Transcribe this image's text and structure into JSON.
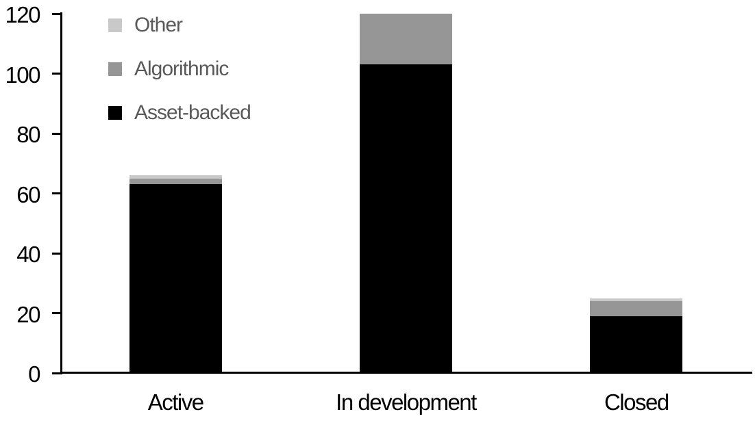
{
  "chart_data": {
    "type": "bar",
    "stacked": true,
    "title": "",
    "xlabel": "",
    "ylabel": "",
    "categories": [
      "Active",
      "In development",
      "Closed"
    ],
    "series": [
      {
        "name": "Asset-backed",
        "color": "#000000",
        "values": [
          63,
          103,
          19
        ]
      },
      {
        "name": "Algorithmic",
        "color": "#969696",
        "values": [
          2,
          17,
          5
        ]
      },
      {
        "name": "Other",
        "color": "#c9c9c9",
        "values": [
          1,
          0,
          1
        ]
      }
    ],
    "category_totals": [
      66,
      120,
      25
    ],
    "ylim": [
      0,
      120
    ],
    "y_ticks": [
      0,
      20,
      40,
      60,
      80,
      100,
      120
    ],
    "grid": false,
    "legend_position": "top-left",
    "legend_order_top_to_bottom": [
      "Other",
      "Algorithmic",
      "Asset-backed"
    ],
    "axis_color": "#000000",
    "tick_label_color": "#000000",
    "legend_text_color": "#595959",
    "background_color": "#ffffff"
  }
}
